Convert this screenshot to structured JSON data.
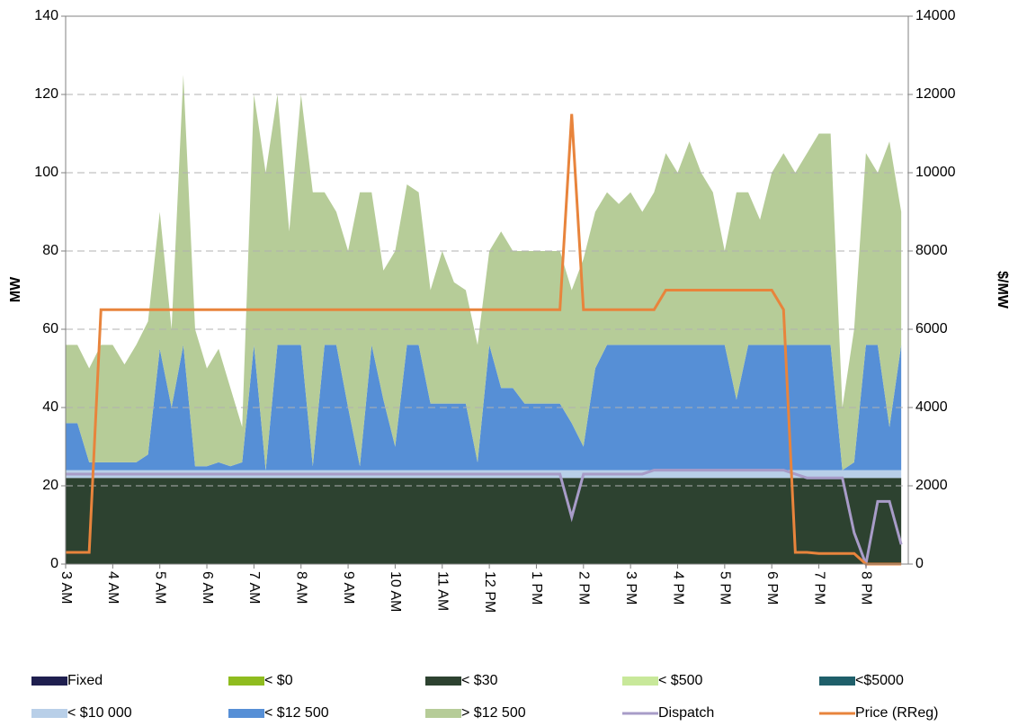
{
  "chart_data": {
    "type": "area",
    "ylabel": "MW",
    "y2label": "$/MW",
    "x": [
      3,
      3.25,
      3.5,
      3.75,
      4,
      4.25,
      4.5,
      4.75,
      5,
      5.25,
      5.5,
      5.75,
      6,
      6.25,
      6.5,
      6.75,
      7,
      7.25,
      7.5,
      7.75,
      8,
      8.25,
      8.5,
      8.75,
      9,
      9.25,
      9.5,
      9.75,
      10,
      10.25,
      10.5,
      10.75,
      11,
      11.25,
      11.5,
      11.75,
      12,
      12.25,
      12.5,
      12.75,
      13,
      13.25,
      13.5,
      13.75,
      14,
      14.25,
      14.5,
      14.75,
      15,
      15.25,
      15.5,
      15.75,
      16,
      16.25,
      16.5,
      16.75,
      17,
      17.25,
      17.5,
      17.75,
      18,
      18.25,
      18.5,
      18.75,
      19,
      19.25,
      19.5,
      19.75,
      20,
      20.25,
      20.5,
      20.75
    ],
    "xlim": [
      3,
      20.9
    ],
    "xticks": [
      {
        "value": 3,
        "label": "3 AM"
      },
      {
        "value": 4,
        "label": "4 AM"
      },
      {
        "value": 5,
        "label": "5 AM"
      },
      {
        "value": 6,
        "label": "6 AM"
      },
      {
        "value": 7,
        "label": "7 AM"
      },
      {
        "value": 8,
        "label": "8 AM"
      },
      {
        "value": 9,
        "label": "9 AM"
      },
      {
        "value": 10,
        "label": "10 AM"
      },
      {
        "value": 11,
        "label": "11 AM"
      },
      {
        "value": 12,
        "label": "12 PM"
      },
      {
        "value": 13,
        "label": "1 PM"
      },
      {
        "value": 14,
        "label": "2 PM"
      },
      {
        "value": 15,
        "label": "3 PM"
      },
      {
        "value": 16,
        "label": "4 PM"
      },
      {
        "value": 17,
        "label": "5 PM"
      },
      {
        "value": 18,
        "label": "6 PM"
      },
      {
        "value": 19,
        "label": "7 PM"
      },
      {
        "value": 20,
        "label": "8 PM"
      }
    ],
    "ylim": [
      0,
      140
    ],
    "yticks": [
      0,
      20,
      40,
      60,
      80,
      100,
      120,
      140
    ],
    "y2lim": [
      0,
      14000
    ],
    "y2ticks": [
      0,
      2000,
      4000,
      6000,
      8000,
      10000,
      12000,
      14000
    ],
    "grid": true,
    "series": [
      {
        "name": "Fixed",
        "type": "area",
        "color": "#1f1f4f",
        "values": [
          0,
          0,
          0,
          0,
          0,
          0,
          0,
          0,
          0,
          0,
          0,
          0,
          0,
          0,
          0,
          0,
          0,
          0,
          0,
          0,
          0,
          0,
          0,
          0,
          0,
          0,
          0,
          0,
          0,
          0,
          0,
          0,
          0,
          0,
          0,
          0,
          0,
          0,
          0,
          0,
          0,
          0,
          0,
          0,
          0,
          0,
          0,
          0,
          0,
          0,
          0,
          0,
          0,
          0,
          0,
          0,
          0,
          0,
          0,
          0,
          0,
          0,
          0,
          0,
          0,
          0,
          0,
          0,
          0,
          0,
          0,
          0
        ]
      },
      {
        "name": "< $0",
        "type": "area",
        "color": "#8fbc1f",
        "values": [
          0,
          0,
          0,
          0,
          0,
          0,
          0,
          0,
          0,
          0,
          0,
          0,
          0,
          0,
          0,
          0,
          0,
          0,
          0,
          0,
          0,
          0,
          0,
          0,
          0,
          0,
          0,
          0,
          0,
          0,
          0,
          0,
          0,
          0,
          0,
          0,
          0,
          0,
          0,
          0,
          0,
          0,
          0,
          0,
          0,
          0,
          0,
          0,
          0,
          0,
          0,
          0,
          0,
          0,
          0,
          0,
          0,
          0,
          0,
          0,
          0,
          0,
          0,
          0,
          0,
          0,
          0,
          0,
          0,
          0,
          0,
          0
        ]
      },
      {
        "name": "< $30",
        "type": "area",
        "color": "#2d4230",
        "values": [
          22,
          22,
          22,
          22,
          22,
          22,
          22,
          22,
          22,
          22,
          22,
          22,
          22,
          22,
          22,
          22,
          22,
          22,
          22,
          22,
          22,
          22,
          22,
          22,
          22,
          22,
          22,
          22,
          22,
          22,
          22,
          22,
          22,
          22,
          22,
          22,
          22,
          22,
          22,
          22,
          22,
          22,
          22,
          22,
          22,
          22,
          22,
          22,
          22,
          22,
          22,
          22,
          22,
          22,
          22,
          22,
          22,
          22,
          22,
          22,
          22,
          22,
          22,
          22,
          22,
          22,
          22,
          22,
          22,
          22,
          22,
          22
        ]
      },
      {
        "name": "< $500",
        "type": "area",
        "color": "#c8e89a",
        "values": [
          0,
          0,
          0,
          0,
          0,
          0,
          0,
          0,
          0,
          0,
          0,
          0,
          0,
          0,
          0,
          0,
          0,
          0,
          0,
          0,
          0,
          0,
          0,
          0,
          0,
          0,
          0,
          0,
          0,
          0,
          0,
          0,
          0,
          0,
          0,
          0,
          0,
          0,
          0,
          0,
          0,
          0,
          0,
          0,
          0,
          0,
          0,
          0,
          0,
          0,
          0,
          0,
          0,
          0,
          0,
          0,
          0,
          0,
          0,
          0,
          0,
          0,
          0,
          0,
          0,
          0,
          0,
          0,
          0,
          0,
          0,
          0
        ]
      },
      {
        "name": "<$5000",
        "type": "area",
        "color": "#1f5f6a",
        "values": [
          0,
          0,
          0,
          0,
          0,
          0,
          0,
          0,
          0,
          0,
          0,
          0,
          0,
          0,
          0,
          0,
          0,
          0,
          0,
          0,
          0,
          0,
          0,
          0,
          0,
          0,
          0,
          0,
          0,
          0,
          0,
          0,
          0,
          0,
          0,
          0,
          0,
          0,
          0,
          0,
          0,
          0,
          0,
          0,
          0,
          0,
          0,
          0,
          0,
          0,
          0,
          0,
          0,
          0,
          0,
          0,
          0,
          0,
          0,
          0,
          0,
          0,
          0,
          0,
          0,
          0,
          0,
          0,
          0,
          0,
          0,
          0
        ]
      },
      {
        "name": "< $10 000",
        "type": "area",
        "color": "#b8cfe8",
        "values": [
          2,
          2,
          2,
          2,
          2,
          2,
          2,
          2,
          2,
          2,
          2,
          2,
          2,
          2,
          2,
          2,
          2,
          2,
          2,
          2,
          2,
          2,
          2,
          2,
          2,
          2,
          2,
          2,
          2,
          2,
          2,
          2,
          2,
          2,
          2,
          2,
          2,
          2,
          2,
          2,
          2,
          2,
          2,
          2,
          2,
          2,
          2,
          2,
          2,
          2,
          2,
          2,
          2,
          2,
          2,
          2,
          2,
          2,
          2,
          2,
          2,
          2,
          2,
          2,
          2,
          2,
          2,
          2,
          2,
          2,
          2,
          2
        ]
      },
      {
        "name": "< $12 500",
        "type": "area",
        "color": "#568fd6",
        "values": [
          12,
          12,
          2,
          2,
          2,
          2,
          2,
          4,
          31,
          16,
          32,
          1,
          1,
          2,
          1,
          2,
          32,
          0,
          32,
          32,
          32,
          1,
          32,
          32,
          16,
          1,
          32,
          18,
          6,
          32,
          32,
          17,
          17,
          17,
          17,
          2,
          32,
          21,
          21,
          17,
          17,
          17,
          17,
          12,
          6,
          26,
          32,
          32,
          32,
          32,
          32,
          32,
          32,
          32,
          32,
          32,
          32,
          18,
          32,
          32,
          32,
          32,
          32,
          32,
          32,
          32,
          0,
          2,
          32,
          32,
          11,
          32
        ]
      },
      {
        "name": "> $12 500",
        "type": "area",
        "color": "#b6cc98",
        "values": [
          20,
          20,
          24,
          30,
          30,
          25,
          30,
          34,
          35,
          20,
          69,
          35,
          25,
          29,
          20,
          9,
          64,
          76,
          64,
          29,
          64,
          70,
          39,
          34,
          40,
          70,
          39,
          33,
          50,
          41,
          39,
          29,
          39,
          31,
          29,
          30,
          24,
          40,
          35,
          39,
          39,
          39,
          39,
          34,
          48,
          40,
          39,
          36,
          39,
          34,
          39,
          49,
          44,
          52,
          44,
          39,
          24,
          53,
          39,
          32,
          44,
          49,
          44,
          49,
          54,
          54,
          16,
          34,
          49,
          44,
          73,
          34
        ]
      },
      {
        "name": "Dispatch",
        "type": "line",
        "color": "#a89cc8",
        "values": [
          23,
          23,
          23,
          23,
          23,
          23,
          23,
          23,
          23,
          23,
          23,
          23,
          23,
          23,
          23,
          23,
          23,
          23,
          23,
          23,
          23,
          23,
          23,
          23,
          23,
          23,
          23,
          23,
          23,
          23,
          23,
          23,
          23,
          23,
          23,
          23,
          23,
          23,
          23,
          23,
          23,
          23,
          23,
          12,
          23,
          23,
          23,
          23,
          23,
          23,
          24,
          24,
          24,
          24,
          24,
          24,
          24,
          24,
          24,
          24,
          24,
          24,
          23,
          22,
          22,
          22,
          22,
          8,
          0,
          16,
          16,
          5
        ]
      },
      {
        "name": "Price (RReg)",
        "type": "line",
        "axis": "y2",
        "color": "#e8843c",
        "values": [
          300,
          300,
          300,
          6500,
          6500,
          6500,
          6500,
          6500,
          6500,
          6500,
          6500,
          6500,
          6500,
          6500,
          6500,
          6500,
          6500,
          6500,
          6500,
          6500,
          6500,
          6500,
          6500,
          6500,
          6500,
          6500,
          6500,
          6500,
          6500,
          6500,
          6500,
          6500,
          6500,
          6500,
          6500,
          6500,
          6500,
          6500,
          6500,
          6500,
          6500,
          6500,
          6500,
          11500,
          6500,
          6500,
          6500,
          6500,
          6500,
          6500,
          6500,
          7000,
          7000,
          7000,
          7000,
          7000,
          7000,
          7000,
          7000,
          7000,
          7000,
          6500,
          300,
          300,
          270,
          270,
          270,
          270,
          0,
          0,
          0,
          0
        ]
      }
    ]
  }
}
